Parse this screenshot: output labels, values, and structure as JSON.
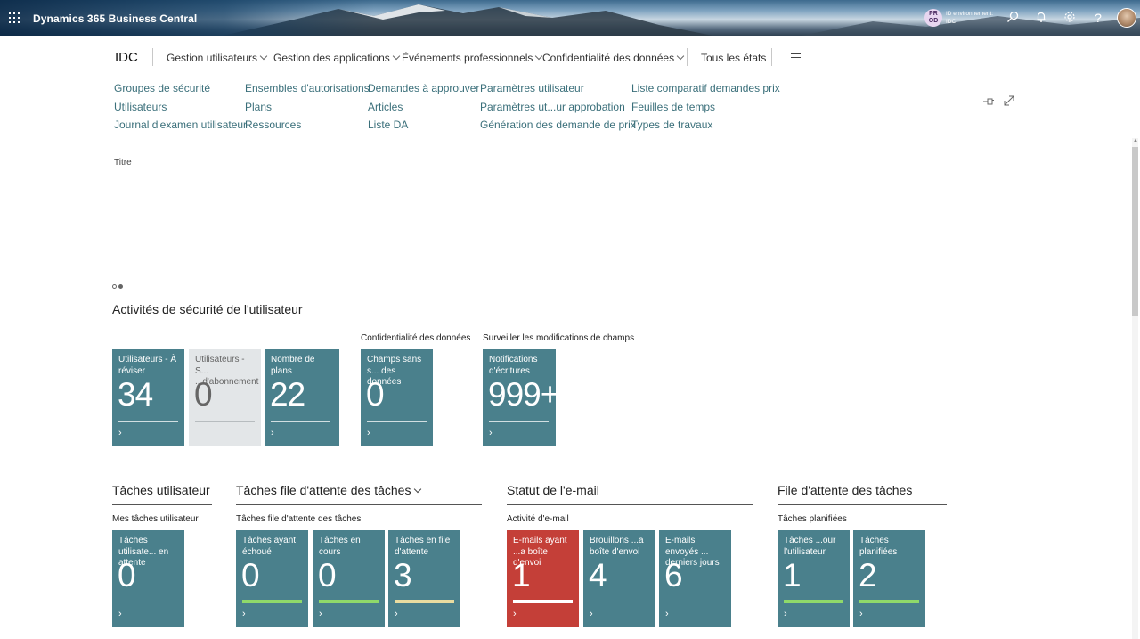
{
  "app": {
    "title": "Dynamics 365 Business Central",
    "env_badge": "PR OD",
    "env_label": "ID environnement:",
    "env_value": "IDC"
  },
  "topbar_icons": [
    "search-icon",
    "bell-icon",
    "gear-icon",
    "help-icon"
  ],
  "nav": {
    "company": "IDC",
    "items": [
      "Gestion utilisateurs",
      "Gestion des applications",
      "Événements professionnels",
      "Confidentialité des données",
      "Tous les états"
    ]
  },
  "links": {
    "col1": [
      "Groupes de sécurité",
      "Utilisateurs",
      "Journal d'examen utilisateur"
    ],
    "col2": [
      "Ensembles d'autorisations",
      "Plans",
      "Ressources"
    ],
    "col3": [
      "Demandes à approuver",
      "Articles",
      "Liste DA"
    ],
    "col4": [
      "Paramètres utilisateur",
      "Paramètres ut...ur approbation",
      "Génération des demande de prix"
    ],
    "col5": [
      "Liste comparatif demandes prix",
      "Feuilles de temps",
      "Types de travaux"
    ]
  },
  "titre": "Titre",
  "security": {
    "title": "Activités de sécurité de l'utilisateur",
    "sub_privacy": "Confidentialité des données",
    "sub_monitor": "Surveiller les modifications de champs",
    "tiles": [
      {
        "label": "Utilisateurs - À réviser",
        "value": "34"
      },
      {
        "label": "Utilisateurs - S... ...d'abonnement",
        "value": "0"
      },
      {
        "label": "Nombre de plans",
        "value": "22"
      },
      {
        "label": "Champs sans s... des données",
        "value": "0"
      },
      {
        "label": "Notifications d'écritures",
        "value": "999+"
      }
    ]
  },
  "user_tasks": {
    "title": "Tâches utilisateur",
    "sub": "Mes tâches utilisateur",
    "tiles": [
      {
        "label": "Tâches utilisate... en attente",
        "value": "0"
      }
    ]
  },
  "queue_tasks": {
    "title": "Tâches file d'attente des tâches",
    "sub": "Tâches file d'attente des tâches",
    "tiles": [
      {
        "label": "Tâches ayant échoué",
        "value": "0"
      },
      {
        "label": "Tâches en cours",
        "value": "0"
      },
      {
        "label": "Tâches en file d'attente",
        "value": "3"
      }
    ]
  },
  "email": {
    "title": "Statut de l'e-mail",
    "sub": "Activité d'e-mail",
    "tiles": [
      {
        "label": "E-mails ayant ...a boîte d'envoi",
        "value": "1"
      },
      {
        "label": "Brouillons ...a boîte d'envoi",
        "value": "4"
      },
      {
        "label": "E-mails envoyés ... derniers jours",
        "value": "6"
      }
    ]
  },
  "jobqueue": {
    "title": "File d'attente des tâches",
    "sub": "Tâches planifiées",
    "tiles": [
      {
        "label": "Tâches ...our l'utilisateur",
        "value": "1"
      },
      {
        "label": "Tâches planifiées",
        "value": "2"
      }
    ]
  },
  "colors": {
    "tile": "#4a808c",
    "tile_light": "#e3e6e8",
    "tile_alert": "#c43f38",
    "status_green": "#8fd96a",
    "status_yellow": "#e9dca0",
    "link": "#3a6f7a"
  }
}
